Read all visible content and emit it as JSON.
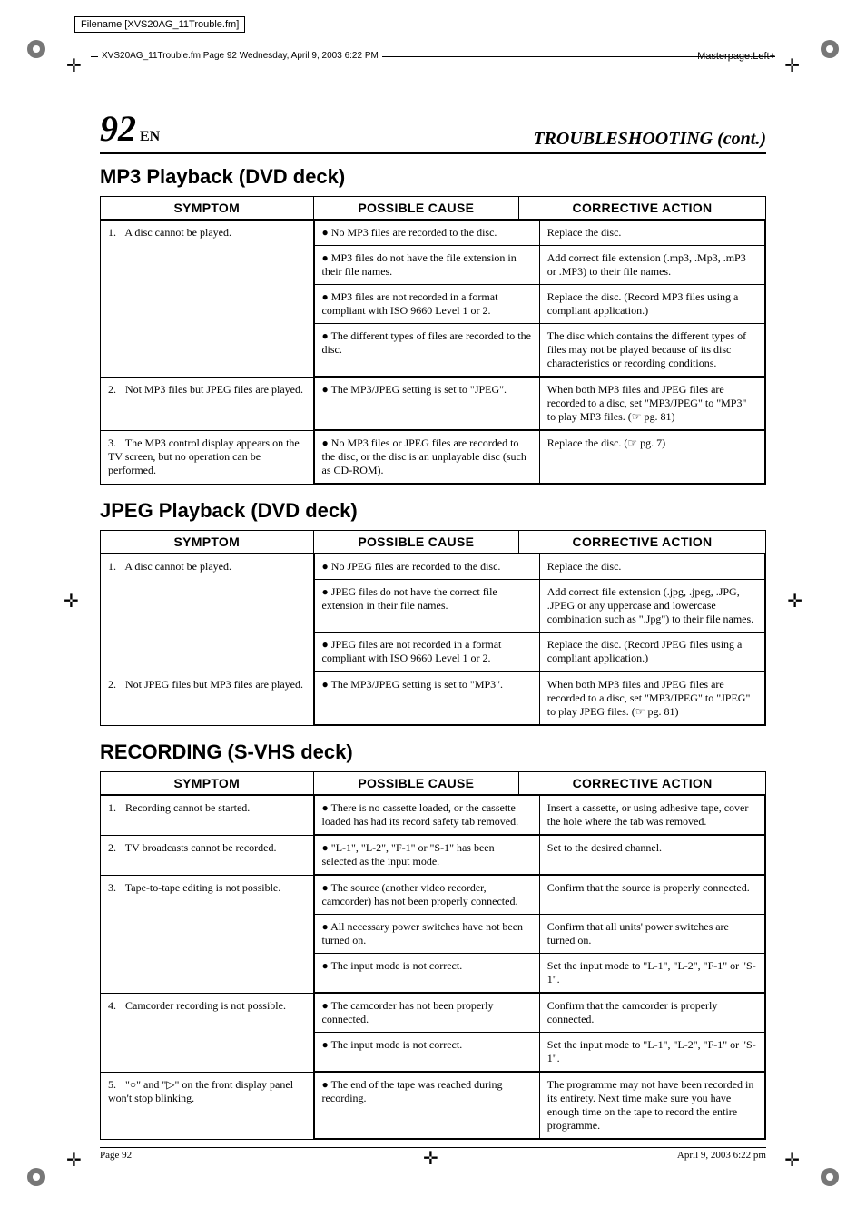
{
  "header": {
    "filename_box": "Filename [XVS20AG_11Trouble.fm]",
    "runline": "XVS20AG_11Trouble.fm  Page 92  Wednesday, April 9, 2003  6:22 PM",
    "masterpage": "Masterpage:Left+"
  },
  "page": {
    "number": "92",
    "en": "EN",
    "heading_right": "TROUBLESHOOTING (cont.)"
  },
  "columns": {
    "symptom": "SYMPTOM",
    "cause": "POSSIBLE CAUSE",
    "action": "CORRECTIVE ACTION"
  },
  "sections": [
    {
      "title": "MP3 Playback (DVD deck)",
      "rows": [
        {
          "num": "1.",
          "symptom": "A disc cannot be played.",
          "pairs": [
            {
              "cause": "● No MP3 files are recorded to the disc.",
              "action": "Replace the disc."
            },
            {
              "cause": "● MP3 files do not have the file extension in their file names.",
              "action": "Add correct file extension (.mp3, .Mp3, .mP3 or .MP3) to their file names."
            },
            {
              "cause": "● MP3 files are not recorded in a format compliant with ISO 9660 Level 1 or 2.",
              "action": "Replace the disc. (Record MP3 files using a compliant application.)"
            },
            {
              "cause": "● The different types of files are recorded to the disc.",
              "action": "The disc which contains the different types of files may not be played because of its disc characteristics or recording conditions."
            }
          ]
        },
        {
          "num": "2.",
          "symptom": "Not MP3 files but JPEG files are played.",
          "pairs": [
            {
              "cause": "● The MP3/JPEG setting is set to \"JPEG\".",
              "action": "When both MP3 files and JPEG files are recorded to a disc, set \"MP3/JPEG\" to \"MP3\" to play MP3 files. (☞ pg. 81)"
            }
          ]
        },
        {
          "num": "3.",
          "symptom": "The MP3 control display appears on the TV screen, but no operation can be performed.",
          "pairs": [
            {
              "cause": "● No MP3 files or JPEG files are recorded to the disc, or the disc is an unplayable disc (such as CD-ROM).",
              "action": "Replace the disc. (☞ pg. 7)"
            }
          ]
        }
      ]
    },
    {
      "title": "JPEG Playback (DVD deck)",
      "rows": [
        {
          "num": "1.",
          "symptom": "A disc cannot be played.",
          "pairs": [
            {
              "cause": "● No JPEG files are recorded to the disc.",
              "action": "Replace the disc."
            },
            {
              "cause": "● JPEG files do not have the correct file extension in their file names.",
              "action": "Add correct file extension (.jpg, .jpeg, .JPG, .JPEG or any uppercase and lowercase combination such as \".Jpg\") to their file names."
            },
            {
              "cause": "● JPEG files are not recorded in a format compliant with ISO 9660 Level 1 or 2.",
              "action": "Replace the disc. (Record JPEG files using a compliant application.)"
            }
          ]
        },
        {
          "num": "2.",
          "symptom": "Not JPEG files but MP3 files are played.",
          "pairs": [
            {
              "cause": "● The MP3/JPEG setting is set to \"MP3\".",
              "action": "When both MP3 files and JPEG files are recorded to a disc, set \"MP3/JPEG\" to \"JPEG\" to play JPEG files. (☞ pg. 81)"
            }
          ]
        }
      ]
    },
    {
      "title": "RECORDING (S-VHS deck)",
      "rows": [
        {
          "num": "1.",
          "symptom": "Recording cannot be started.",
          "pairs": [
            {
              "cause": "● There is no cassette loaded, or the cassette loaded has had its record safety tab removed.",
              "action": "Insert a cassette, or using adhesive tape, cover the hole where the tab was removed."
            }
          ]
        },
        {
          "num": "2.",
          "symptom": "TV broadcasts cannot be recorded.",
          "pairs": [
            {
              "cause": "● \"L-1\", \"L-2\", \"F-1\" or \"S-1\" has been selected as the input mode.",
              "action": "Set to the desired channel."
            }
          ]
        },
        {
          "num": "3.",
          "symptom": "Tape-to-tape editing is not possible.",
          "pairs": [
            {
              "cause": "● The source (another video recorder, camcorder) has not been properly connected.",
              "action": "Confirm that the source is properly connected."
            },
            {
              "cause": "● All necessary power switches have not been turned on.",
              "action": "Confirm that all units' power switches are turned on."
            },
            {
              "cause": "● The input mode is not correct.",
              "action": "Set the input mode to \"L-1\", \"L-2\", \"F-1\" or \"S-1\"."
            }
          ]
        },
        {
          "num": "4.",
          "symptom": "Camcorder recording is not possible.",
          "pairs": [
            {
              "cause": "● The camcorder has not been properly connected.",
              "action": "Confirm that the camcorder is properly connected."
            },
            {
              "cause": "● The input mode is not correct.",
              "action": "Set the input mode to \"L-1\", \"L-2\", \"F-1\" or \"S-1\"."
            }
          ]
        },
        {
          "num": "5.",
          "symptom": "\"○\" and \"▷\" on the front display panel won't stop blinking.",
          "pairs": [
            {
              "cause": "● The end of the tape was reached during recording.",
              "action": "The programme may not have been recorded in its entirety. Next time make sure you have enough time on the tape to record the entire programme."
            }
          ]
        }
      ]
    }
  ],
  "footer": {
    "left": "Page 92",
    "right": "April 9, 2003  6:22 pm"
  }
}
